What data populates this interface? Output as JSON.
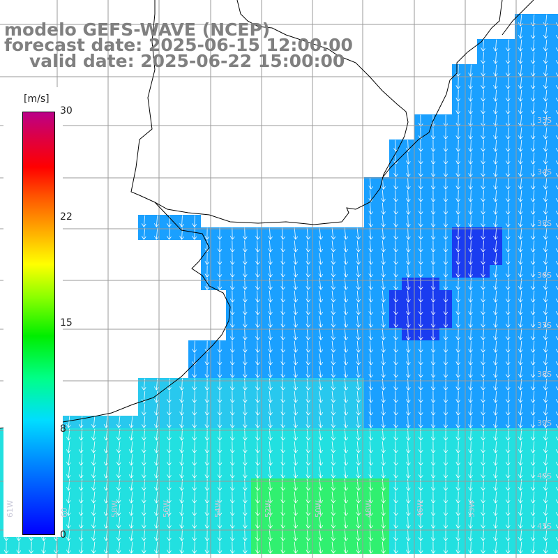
{
  "title": {
    "line1": "modelo GEFS-WAVE (NCEP)",
    "line2": "forecast date: 2025-06-15 12:00:00",
    "line3": "valid date: 2025-06-22 15:00:00"
  },
  "colorbar": {
    "unit": "[m/s]",
    "min": 0,
    "max": 30,
    "ticks": [
      "30",
      "22",
      "15",
      "8",
      "0"
    ]
  },
  "map": {
    "variable": "wind speed with direction arrows",
    "arrow_direction": "mostly southward (wind blowing toward the south)",
    "lon_labels": [
      "61W",
      "60",
      "58W",
      "56W",
      "54W",
      "52W",
      "50W",
      "48W",
      "46W",
      "53W"
    ],
    "lat_labels": [
      "33S",
      "34S",
      "35S",
      "36S",
      "37S",
      "38S",
      "39S",
      "40S",
      "41S"
    ],
    "colors": {
      "land": "#ffffff",
      "coast": "#000000",
      "grid": "#9a9a9a",
      "arrow": "#ffffff",
      "calm": "#1a3cf0",
      "moderate": "#1aa0ff",
      "fresh": "#22e0e0",
      "strong": "#30f070"
    }
  }
}
